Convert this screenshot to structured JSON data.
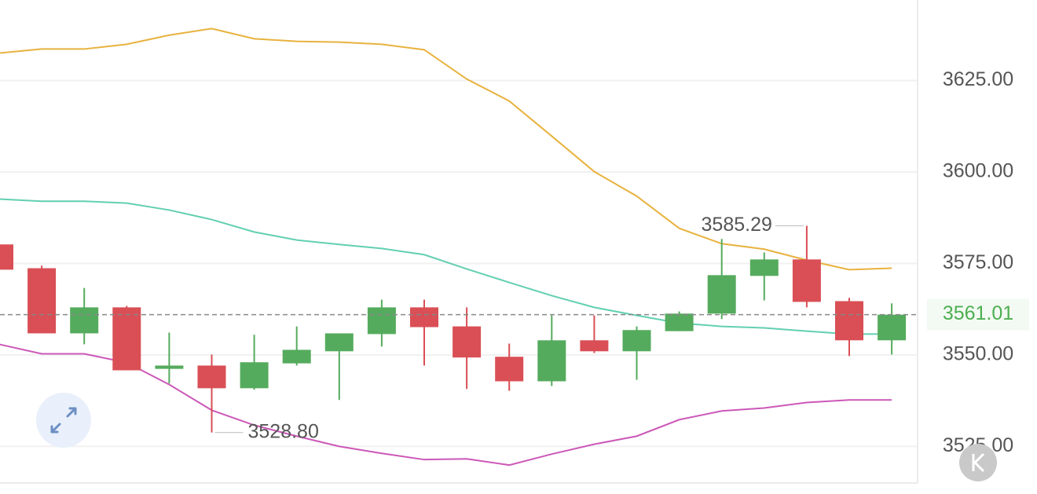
{
  "chart_data": {
    "type": "candlestick",
    "open": [
      3580.2,
      3573.7,
      3555.9,
      3563.0,
      3546.2,
      3547.1,
      3540.9,
      3547.7,
      3551.0,
      3555.7,
      3563.0,
      3557.8,
      3549.5,
      3542.8,
      3554.0,
      3551.0,
      3556.5,
      3561.3,
      3571.6,
      3576.1,
      3564.7,
      3554.0
    ],
    "high": [
      3580.2,
      3574.4,
      3568.3,
      3563.4,
      3556.1,
      3550.1,
      3555.5,
      3557.8,
      3555.9,
      3565.1,
      3565.1,
      3563.0,
      3553.1,
      3560.8,
      3560.8,
      3557.8,
      3561.9,
      3581.7,
      3578.0,
      3585.29,
      3565.6,
      3564.1
    ],
    "low": [
      3573.3,
      3555.9,
      3552.9,
      3545.8,
      3542.2,
      3528.8,
      3540.5,
      3547.1,
      3537.7,
      3552.3,
      3547.1,
      3540.7,
      3540.2,
      3541.5,
      3550.5,
      3543.2,
      3556.5,
      3559.8,
      3564.9,
      3563.0,
      3549.7,
      3550.1
    ],
    "close": [
      3573.3,
      3555.9,
      3563.0,
      3545.8,
      3547.1,
      3540.9,
      3548.0,
      3551.4,
      3555.9,
      3563.0,
      3557.6,
      3549.3,
      3542.8,
      3554.0,
      3551.0,
      3556.8,
      3561.3,
      3571.8,
      3576.1,
      3564.5,
      3554.0,
      3561.01
    ],
    "up_color": "#55ab5d",
    "down_color": "#d94f55",
    "bands": [
      {
        "color": "#e8b23e",
        "values": [
          3632.5,
          3633.6,
          3633.6,
          3634.9,
          3637.4,
          3639.2,
          3636.4,
          3635.7,
          3635.5,
          3634.9,
          3633.4,
          3625.4,
          3619.4,
          3609.8,
          3600.1,
          3593.4,
          3584.6,
          3580.4,
          3578.9,
          3575.9,
          3573.3,
          3573.7
        ]
      },
      {
        "color": "#62cfb1",
        "values": [
          3592.6,
          3592.0,
          3592.0,
          3591.5,
          3589.6,
          3587.0,
          3583.6,
          3581.4,
          3580.2,
          3579.1,
          3577.4,
          3573.5,
          3569.8,
          3566.2,
          3563.0,
          3560.8,
          3558.7,
          3557.8,
          3557.4,
          3556.5,
          3555.7,
          3555.7
        ]
      },
      {
        "color": "#cc58b8",
        "values": [
          3552.9,
          3550.3,
          3550.3,
          3547.9,
          3541.9,
          3534.9,
          3530.8,
          3527.8,
          3525.0,
          3523.1,
          3521.4,
          3521.6,
          3519.9,
          3522.9,
          3525.6,
          3527.8,
          3532.3,
          3534.7,
          3535.5,
          3537.0,
          3537.7,
          3537.7
        ]
      }
    ],
    "annotations": [
      {
        "value": 3585.29,
        "label": "3585.29"
      },
      {
        "value": 3528.8,
        "label": "3528.80"
      }
    ],
    "last_price": {
      "value": 3561.01,
      "label": "3561.01",
      "color": "#4caf50"
    },
    "ylim": [
      3515,
      3647
    ],
    "yticks": [
      {
        "value": 3525,
        "label": "3525.00"
      },
      {
        "value": 3550,
        "label": "3550.00"
      },
      {
        "value": 3575,
        "label": "3575.00"
      },
      {
        "value": 3600,
        "label": "3600.00"
      },
      {
        "value": 3625,
        "label": "3625.00"
      }
    ],
    "grid": true
  }
}
